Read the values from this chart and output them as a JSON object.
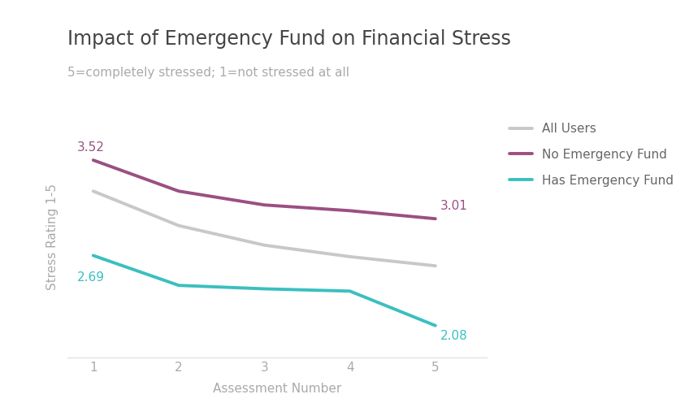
{
  "title": "Impact of Emergency Fund on Financial Stress",
  "subtitle": "5=completely stressed; 1=not stressed at all",
  "xlabel": "Assessment Number",
  "ylabel": "Stress Rating 1-5",
  "x": [
    1,
    2,
    3,
    4,
    5
  ],
  "all_users": [
    3.25,
    2.95,
    2.78,
    2.68,
    2.6
  ],
  "no_emergency_fund": [
    3.52,
    3.25,
    3.13,
    3.08,
    3.01
  ],
  "has_emergency_fund": [
    2.69,
    2.43,
    2.4,
    2.38,
    2.08
  ],
  "all_users_color": "#c8c8c8",
  "no_fund_color": "#9b4f82",
  "has_fund_color": "#3bbfc0",
  "annotation_no_fund_start": "3.52",
  "annotation_no_fund_end": "3.01",
  "annotation_has_fund_start": "2.69",
  "annotation_has_fund_end": "2.08",
  "ylim_min": 1.8,
  "ylim_max": 3.9,
  "xlim_min": 0.7,
  "xlim_max": 5.6,
  "legend_labels": [
    "All Users",
    "No Emergency Fund",
    "Has Emergency Fund"
  ],
  "line_width": 2.8,
  "background_color": "#ffffff",
  "title_fontsize": 17,
  "subtitle_fontsize": 11,
  "label_fontsize": 11,
  "tick_fontsize": 11,
  "annotation_fontsize": 11,
  "legend_fontsize": 11,
  "title_color": "#444444",
  "subtitle_color": "#aaaaaa",
  "tick_color": "#aaaaaa",
  "axis_label_color": "#aaaaaa",
  "legend_text_color": "#666666"
}
